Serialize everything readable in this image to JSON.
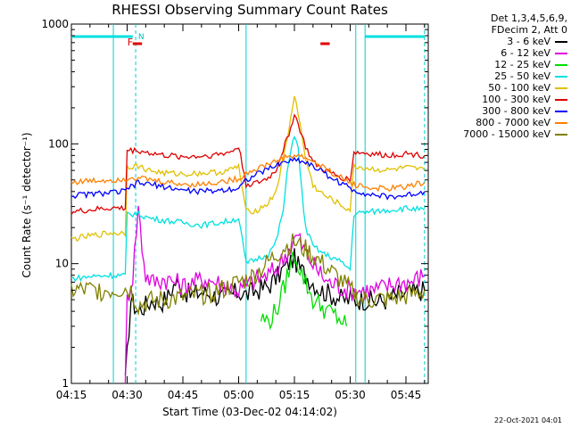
{
  "chart_data": {
    "type": "line",
    "title": "RHESSI Observing Summary Count Rates",
    "xlabel": "Start Time (03-Dec-02 04:14:02)",
    "ylabel": "Count Rate (s⁻¹ detector⁻¹)",
    "yscale": "log",
    "ylim": [
      1,
      1000
    ],
    "xlim_min": [
      15,
      111
    ],
    "x_ticks": [
      {
        "m": 15,
        "label": "04:15"
      },
      {
        "m": 30,
        "label": "04:30"
      },
      {
        "m": 45,
        "label": "04:45"
      },
      {
        "m": 60,
        "label": "05:00"
      },
      {
        "m": 75,
        "label": "05:15"
      },
      {
        "m": 90,
        "label": "05:30"
      },
      {
        "m": 105,
        "label": "05:45"
      }
    ],
    "y_ticks": [
      {
        "v": 1,
        "label": "1"
      },
      {
        "v": 10,
        "label": "10"
      },
      {
        "v": 100,
        "label": "100"
      },
      {
        "v": 1000,
        "label": "1000"
      }
    ],
    "legend_header": [
      "Det 1,3,4,5,6,9,",
      "FDecim 2, Att 0"
    ],
    "x_unit": "minutes after 04:00",
    "series": [
      {
        "name": "3 - 6 keV",
        "color": "#000000",
        "points": [
          [
            29.5,
            1
          ],
          [
            31,
            5
          ],
          [
            33,
            4
          ],
          [
            35,
            4.5
          ],
          [
            37,
            5
          ],
          [
            39,
            4.7
          ],
          [
            41,
            5.3
          ],
          [
            43,
            7
          ],
          [
            45,
            6
          ],
          [
            47,
            5.5
          ],
          [
            50,
            5.8
          ],
          [
            53,
            5.5
          ],
          [
            55,
            5.2
          ],
          [
            58,
            5.5
          ],
          [
            60,
            5.8
          ],
          [
            62,
            5.5
          ],
          [
            65,
            6
          ],
          [
            68,
            6.5
          ],
          [
            70,
            7.5
          ],
          [
            72,
            9
          ],
          [
            74,
            10.5
          ],
          [
            75,
            11
          ],
          [
            76,
            9.5
          ],
          [
            78,
            8
          ],
          [
            80,
            7
          ],
          [
            82,
            6
          ],
          [
            85,
            5.5
          ],
          [
            88,
            5
          ],
          [
            90,
            5
          ],
          [
            94,
            5
          ],
          [
            97,
            4.8
          ],
          [
            100,
            5
          ],
          [
            103,
            5.5
          ],
          [
            105,
            5.6
          ],
          [
            107,
            5.8
          ],
          [
            110,
            6
          ]
        ]
      },
      {
        "name": "6 - 12 keV",
        "color": "#e000e0",
        "points": [
          [
            29.5,
            1
          ],
          [
            30,
            5
          ],
          [
            31.5,
            8
          ],
          [
            33,
            30
          ],
          [
            34,
            14
          ],
          [
            35,
            8
          ],
          [
            37,
            7
          ],
          [
            40,
            7.5
          ],
          [
            43,
            7
          ],
          [
            45,
            6.5
          ],
          [
            48,
            7
          ],
          [
            51,
            7.5
          ],
          [
            54,
            7
          ],
          [
            57,
            6.5
          ],
          [
            60,
            6
          ],
          [
            62,
            6.5
          ],
          [
            65,
            7.5
          ],
          [
            68,
            8
          ],
          [
            70,
            9
          ],
          [
            72,
            11
          ],
          [
            74,
            14
          ],
          [
            75,
            16
          ],
          [
            76,
            17
          ],
          [
            77,
            14
          ],
          [
            79,
            11
          ],
          [
            81,
            9
          ],
          [
            84,
            7
          ],
          [
            87,
            6.5
          ],
          [
            90,
            6
          ],
          [
            94,
            6
          ],
          [
            97,
            6
          ],
          [
            100,
            6.5
          ],
          [
            103,
            7
          ],
          [
            106,
            7
          ],
          [
            108,
            7.5
          ],
          [
            110,
            8
          ]
        ]
      },
      {
        "name": "12 - 25 keV",
        "color": "#00dd00",
        "points": [
          [
            66,
            3.5
          ],
          [
            68,
            3.3
          ],
          [
            70,
            4
          ],
          [
            72,
            6
          ],
          [
            74,
            10
          ],
          [
            75,
            12
          ],
          [
            76,
            10
          ],
          [
            78,
            7
          ],
          [
            80,
            5
          ],
          [
            84,
            4
          ],
          [
            87,
            3.5
          ],
          [
            89,
            3
          ]
        ]
      },
      {
        "name": "25 - 50 keV",
        "color": "#00e0e0",
        "points": [
          [
            15,
            7.5
          ],
          [
            20,
            7.8
          ],
          [
            25,
            8
          ],
          [
            29.5,
            8
          ],
          [
            30,
            26
          ],
          [
            33,
            26
          ],
          [
            36,
            24
          ],
          [
            40,
            23
          ],
          [
            45,
            22
          ],
          [
            50,
            21
          ],
          [
            55,
            22
          ],
          [
            58,
            23
          ],
          [
            60,
            24
          ],
          [
            62,
            10
          ],
          [
            65,
            11
          ],
          [
            68,
            12
          ],
          [
            70,
            15
          ],
          [
            72,
            28
          ],
          [
            73,
            55
          ],
          [
            74,
            90
          ],
          [
            75,
            120
          ],
          [
            76,
            90
          ],
          [
            77,
            40
          ],
          [
            78,
            20
          ],
          [
            80,
            14
          ],
          [
            83,
            12
          ],
          [
            86,
            11
          ],
          [
            88,
            10
          ],
          [
            90,
            9
          ],
          [
            91,
            26
          ],
          [
            95,
            27
          ],
          [
            100,
            28
          ],
          [
            105,
            29
          ],
          [
            110,
            28
          ]
        ]
      },
      {
        "name": "50 - 100 keV",
        "color": "#e0c000",
        "points": [
          [
            15,
            16
          ],
          [
            20,
            17
          ],
          [
            25,
            18
          ],
          [
            29.5,
            18
          ],
          [
            30,
            65
          ],
          [
            33,
            65
          ],
          [
            36,
            60
          ],
          [
            40,
            57
          ],
          [
            45,
            56
          ],
          [
            50,
            57
          ],
          [
            55,
            58
          ],
          [
            58,
            61
          ],
          [
            60,
            65
          ],
          [
            62,
            27
          ],
          [
            65,
            28
          ],
          [
            68,
            32
          ],
          [
            70,
            40
          ],
          [
            72,
            75
          ],
          [
            74,
            160
          ],
          [
            75,
            260
          ],
          [
            76,
            180
          ],
          [
            78,
            75
          ],
          [
            80,
            45
          ],
          [
            83,
            37
          ],
          [
            86,
            33
          ],
          [
            88,
            30
          ],
          [
            90,
            28
          ],
          [
            91,
            65
          ],
          [
            95,
            62
          ],
          [
            100,
            60
          ],
          [
            105,
            63
          ],
          [
            110,
            60
          ]
        ]
      },
      {
        "name": "100 - 300 keV",
        "color": "#e00000",
        "points": [
          [
            15,
            27
          ],
          [
            20,
            28
          ],
          [
            25,
            29
          ],
          [
            29.5,
            29
          ],
          [
            30,
            88
          ],
          [
            33,
            88
          ],
          [
            36,
            84
          ],
          [
            40,
            80
          ],
          [
            45,
            78
          ],
          [
            50,
            79
          ],
          [
            55,
            82
          ],
          [
            58,
            86
          ],
          [
            60,
            95
          ],
          [
            62,
            46
          ],
          [
            65,
            47
          ],
          [
            68,
            52
          ],
          [
            70,
            60
          ],
          [
            72,
            90
          ],
          [
            74,
            135
          ],
          [
            75,
            180
          ],
          [
            76,
            145
          ],
          [
            78,
            95
          ],
          [
            80,
            70
          ],
          [
            83,
            60
          ],
          [
            86,
            55
          ],
          [
            88,
            52
          ],
          [
            90,
            50
          ],
          [
            91,
            85
          ],
          [
            95,
            83
          ],
          [
            100,
            80
          ],
          [
            105,
            83
          ],
          [
            110,
            80
          ]
        ]
      },
      {
        "name": "300 - 800 keV",
        "color": "#0000ff",
        "points": [
          [
            15,
            37
          ],
          [
            20,
            38
          ],
          [
            25,
            39
          ],
          [
            29.5,
            40
          ],
          [
            31,
            44
          ],
          [
            33,
            47
          ],
          [
            36,
            46
          ],
          [
            40,
            44
          ],
          [
            45,
            41
          ],
          [
            50,
            40
          ],
          [
            55,
            41
          ],
          [
            60,
            43
          ],
          [
            62,
            50
          ],
          [
            66,
            58
          ],
          [
            70,
            66
          ],
          [
            73,
            72
          ],
          [
            76,
            74
          ],
          [
            79,
            68
          ],
          [
            82,
            60
          ],
          [
            85,
            52
          ],
          [
            88,
            46
          ],
          [
            91,
            41
          ],
          [
            95,
            38
          ],
          [
            100,
            36
          ],
          [
            105,
            37
          ],
          [
            110,
            40
          ]
        ]
      },
      {
        "name": "800 - 7000 keV",
        "color": "#ff8000",
        "points": [
          [
            15,
            48
          ],
          [
            20,
            49
          ],
          [
            25,
            50
          ],
          [
            29.5,
            51
          ],
          [
            31,
            53
          ],
          [
            33,
            52
          ],
          [
            36,
            50
          ],
          [
            40,
            48
          ],
          [
            45,
            46
          ],
          [
            50,
            46
          ],
          [
            55,
            48
          ],
          [
            60,
            51
          ],
          [
            62,
            57
          ],
          [
            66,
            64
          ],
          [
            70,
            72
          ],
          [
            73,
            78
          ],
          [
            76,
            80
          ],
          [
            79,
            74
          ],
          [
            82,
            66
          ],
          [
            85,
            58
          ],
          [
            88,
            51
          ],
          [
            91,
            46
          ],
          [
            95,
            43
          ],
          [
            100,
            42
          ],
          [
            105,
            44
          ],
          [
            110,
            48
          ]
        ]
      },
      {
        "name": "7000 - 15000 keV",
        "color": "#808000",
        "points": [
          [
            15,
            6
          ],
          [
            20,
            6
          ],
          [
            25,
            6
          ],
          [
            29.5,
            6.2
          ],
          [
            31,
            6
          ],
          [
            33,
            4.5
          ],
          [
            36,
            4.8
          ],
          [
            40,
            5
          ],
          [
            45,
            5.2
          ],
          [
            50,
            5.5
          ],
          [
            55,
            6
          ],
          [
            58,
            6.5
          ],
          [
            60,
            7
          ],
          [
            63,
            7.5
          ],
          [
            66,
            9
          ],
          [
            69,
            11
          ],
          [
            72,
            13.5
          ],
          [
            75,
            15
          ],
          [
            78,
            13
          ],
          [
            81,
            11
          ],
          [
            84,
            9
          ],
          [
            87,
            7.5
          ],
          [
            90,
            6
          ],
          [
            93,
            5
          ],
          [
            96,
            5
          ],
          [
            100,
            5
          ],
          [
            104,
            5.3
          ],
          [
            107,
            5.5
          ],
          [
            110,
            6
          ]
        ]
      }
    ],
    "annotations": {
      "marker_F": {
        "text": "F",
        "m": 31.5,
        "color": "#e00000"
      },
      "marker_N": {
        "text": "N",
        "m": 32.5,
        "color": "#00c0c0"
      },
      "night_spans_cyan": [
        [
          15,
          31.5
        ],
        [
          94,
          110
        ]
      ],
      "flare_bars_red": [
        [
          31.5,
          34
        ],
        [
          82,
          84.5
        ]
      ],
      "dashed_lines_min": [
        32.3,
        110
      ],
      "solid_lines_min": [
        26.3,
        62,
        91.5,
        94
      ]
    }
  },
  "footer_stamp": "22-Oct-2021 04:01"
}
